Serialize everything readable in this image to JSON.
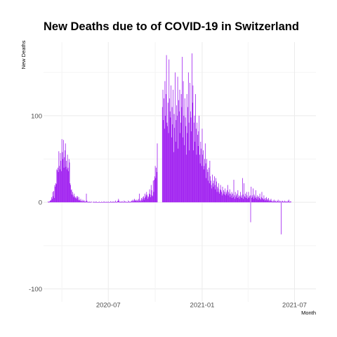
{
  "chart_data": {
    "type": "bar",
    "title": "New Deaths due to of COVID-19 in Switzerland",
    "xlabel": "Month",
    "ylabel": "New Deaths",
    "x_range": [
      "2020-02-25",
      "2021-08-12"
    ],
    "ylim": [
      -115,
      185
    ],
    "y_ticks": [
      -100,
      0,
      100
    ],
    "x_ticks": [
      {
        "date": "2020-07-01",
        "label": "2020-07"
      },
      {
        "date": "2021-01-01",
        "label": "2021-01"
      },
      {
        "date": "2021-07-01",
        "label": "2021-07"
      }
    ],
    "grid": true,
    "legend": "none",
    "bar_color": "#a020f0",
    "segments": [
      {
        "start": "2020-03-05",
        "values": [
          1,
          0,
          1,
          1,
          2,
          2,
          3,
          6,
          4,
          12,
          7,
          13,
          5,
          20,
          18,
          22,
          21,
          38,
          37,
          40,
          35,
          59,
          42,
          38,
          57,
          48,
          36,
          73,
          58,
          50,
          72,
          40,
          52,
          60,
          68,
          41,
          48,
          38,
          55,
          40,
          36,
          50,
          46,
          22,
          20,
          14,
          15,
          9,
          12,
          8,
          6,
          10,
          7,
          5,
          6,
          4,
          7,
          5,
          7,
          3,
          6,
          2,
          3,
          2,
          4,
          1,
          2,
          1,
          3,
          1,
          2,
          2,
          0,
          1,
          1,
          10,
          2,
          1,
          0,
          0,
          1,
          0,
          1,
          0,
          0,
          1
        ]
      },
      {
        "start": "2020-06-01",
        "values": [
          0,
          1,
          0,
          0,
          1,
          0,
          0,
          1,
          0,
          0,
          0,
          0,
          1,
          0,
          0,
          0,
          0,
          1,
          0,
          0,
          0,
          1,
          0,
          1,
          0,
          0,
          0,
          1,
          0,
          0,
          1,
          0,
          0,
          0,
          1,
          1,
          0,
          0,
          1,
          0,
          1,
          0,
          0,
          1,
          2,
          0,
          0,
          1,
          1,
          2,
          4,
          2,
          0,
          1,
          0,
          1,
          0,
          1,
          1,
          0,
          0,
          2,
          1,
          0,
          1,
          1,
          0,
          0,
          0,
          2,
          1,
          0,
          1,
          0,
          1,
          1,
          2,
          1,
          3,
          2,
          1,
          4,
          3,
          2,
          2,
          3,
          1,
          2,
          3,
          1,
          4,
          10,
          2,
          1,
          3,
          5,
          2,
          4,
          6,
          7,
          3,
          5,
          10,
          6,
          8,
          12,
          9,
          4,
          7,
          6,
          10,
          15,
          9,
          6,
          20,
          14,
          8,
          7,
          25,
          12,
          26,
          30,
          42,
          28,
          40,
          35,
          68
        ]
      },
      {
        "start": "2020-10-15",
        "values": [
          110,
          130,
          95,
          120,
          85,
          140,
          100,
          125,
          170,
          92,
          88,
          115,
          80,
          165,
          120,
          105,
          98,
          135,
          75,
          110,
          90,
          130,
          58,
          102,
          86,
          150,
          70,
          95,
          112,
          100,
          145,
          62,
          118,
          105,
          130,
          80,
          92,
          125,
          110,
          168,
          75,
          140,
          100,
          66,
          120,
          98,
          88,
          55,
          125,
          80,
          110,
          150,
          92,
          60,
          138,
          105,
          98,
          82,
          172,
          115,
          135,
          60,
          92,
          100,
          70,
          125,
          85,
          55,
          92,
          78,
          65,
          82,
          100,
          55,
          45,
          70,
          62,
          42,
          85,
          55,
          60,
          38,
          42,
          50,
          68,
          45,
          28,
          50,
          38,
          35,
          25,
          40,
          22,
          48,
          30,
          25,
          20,
          16,
          32,
          22,
          18,
          25,
          30,
          20,
          15,
          28,
          24,
          12,
          18,
          16,
          22,
          12,
          10,
          15,
          20,
          14,
          12,
          8,
          18,
          10,
          14,
          12,
          9,
          16,
          8,
          12,
          10,
          14,
          20,
          8,
          12,
          10,
          15,
          6,
          10,
          8,
          12,
          5,
          10,
          6,
          26,
          8,
          4,
          12,
          6,
          8,
          10,
          5,
          14,
          6,
          8,
          4,
          7,
          12,
          6,
          8,
          5,
          28,
          9,
          4,
          22,
          7,
          6,
          10,
          5,
          12,
          8,
          4,
          6,
          12,
          5,
          7,
          8,
          -23,
          18,
          5,
          8,
          6,
          16,
          4,
          9,
          7,
          5,
          14,
          6,
          4,
          8,
          6,
          3,
          7,
          5,
          10,
          4,
          3,
          6,
          12,
          5,
          4,
          3,
          8,
          4,
          2,
          5,
          3,
          6,
          2,
          4,
          3,
          5,
          2,
          1,
          3,
          2,
          4,
          1,
          2,
          1,
          0,
          2,
          3,
          1,
          1,
          2,
          0,
          1,
          2,
          1,
          3,
          1,
          0,
          2,
          1,
          1,
          -37,
          1,
          2,
          1,
          1,
          0,
          1,
          2,
          1,
          0,
          1,
          1,
          0,
          2,
          1,
          3,
          0,
          1,
          1,
          1
        ]
      }
    ]
  }
}
